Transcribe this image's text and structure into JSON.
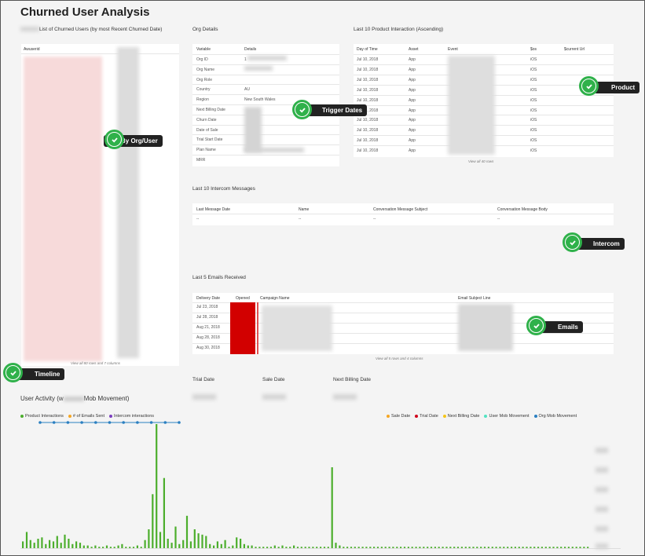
{
  "page": {
    "title": "Churned User Analysis"
  },
  "churned": {
    "title": "List of Churned Users (by most Recent Churned Date)",
    "column": "Awuserid",
    "footer": "View all 80 rows and 7 columns"
  },
  "org": {
    "title": "Org Details",
    "headers": [
      "Variable",
      "Details"
    ],
    "rows": [
      {
        "variable": "Org ID",
        "details": "1"
      },
      {
        "variable": "Org Name",
        "details": ""
      },
      {
        "variable": "Org Role",
        "details": ""
      },
      {
        "variable": "Country",
        "details": "AU"
      },
      {
        "variable": "Region",
        "details": "New South Wales"
      },
      {
        "variable": "Next Billing Date",
        "details": ""
      },
      {
        "variable": "Churn Date",
        "details": ""
      },
      {
        "variable": "Date of Sale",
        "details": ""
      },
      {
        "variable": "Trial Start Date",
        "details": ""
      },
      {
        "variable": "Plan Name",
        "details": ""
      },
      {
        "variable": "MRR",
        "details": ""
      }
    ]
  },
  "product": {
    "title": "Last 10 Product Interaction (Ascending)",
    "headers": [
      "Day of Time",
      "Asset",
      "Event",
      "$os",
      "$current Url"
    ],
    "rows": [
      {
        "date": "Jul 10, 2018",
        "asset": "App",
        "os": "iOS"
      },
      {
        "date": "Jul 10, 2018",
        "asset": "App",
        "os": "iOS"
      },
      {
        "date": "Jul 10, 2018",
        "asset": "App",
        "os": "iOS"
      },
      {
        "date": "Jul 10, 2018",
        "asset": "App",
        "os": "iOS"
      },
      {
        "date": "Jul 10, 2018",
        "asset": "App",
        "os": "iOS"
      },
      {
        "date": "Jul 10, 2018",
        "asset": "App",
        "os": "iOS"
      },
      {
        "date": "Jul 10, 2018",
        "asset": "App",
        "os": "iOS"
      },
      {
        "date": "Jul 10, 2018",
        "asset": "App",
        "os": "iOS"
      },
      {
        "date": "Jul 10, 2018",
        "asset": "App",
        "os": "iOS"
      },
      {
        "date": "Jul 10, 2018",
        "asset": "App",
        "os": "iOS"
      }
    ],
    "footer": "View all 40 rows"
  },
  "intercom": {
    "title": "Last 10 Intercom Messages",
    "headers": [
      "Last Message Date",
      "Name",
      "Conversation Message Subject",
      "Conversation Message Body"
    ],
    "row": [
      "--",
      "--",
      "--",
      "--"
    ]
  },
  "emails": {
    "title": "Last 5 Emails Received",
    "headers": [
      "Delivery Date",
      "Opened",
      "Campaign Name",
      "Email Subject Line"
    ],
    "dates": [
      "Jul 23, 2018",
      "Jul 28, 2018",
      "Aug 21, 2018",
      "Aug 28, 2018",
      "Aug 30, 2018"
    ],
    "footer": "View all 5 rows and 4 columns"
  },
  "dates": {
    "trial": "Trial Date",
    "sale": "Sale Date",
    "next_billing": "Next Billing Date"
  },
  "activity": {
    "title_prefix": "User Activity (w",
    "title_suffix": "Mob Movement)",
    "legend_left": [
      {
        "label": "Product Interactions",
        "color": "#4cae2c"
      },
      {
        "label": "# of Emails Sent",
        "color": "#f5a623"
      },
      {
        "label": "Intercom interactions",
        "color": "#7b3fbf"
      }
    ],
    "legend_right": [
      {
        "label": "Sale Date",
        "color": "#f5a623"
      },
      {
        "label": "Trial Date",
        "color": "#d0021b"
      },
      {
        "label": "Next Billing Date",
        "color": "#f5c518"
      },
      {
        "label": "User Mob Movement",
        "color": "#50e3c2"
      },
      {
        "label": "Org Mob Movement",
        "color": "#2a7fc1"
      }
    ]
  },
  "callouts": {
    "org_user": "By Org/User",
    "trigger": "Trigger Dates",
    "product": "Product",
    "intercom": "Intercom",
    "emails": "Emails",
    "timeline": "Timeline"
  },
  "chart_data": {
    "type": "bar",
    "series": [
      {
        "name": "Product Interactions",
        "values": [
          5,
          12,
          6,
          4,
          7,
          8,
          3,
          6,
          5,
          9,
          4,
          10,
          7,
          3,
          5,
          4,
          2,
          2,
          1,
          2,
          1,
          1,
          2,
          1,
          1,
          2,
          3,
          1,
          1,
          1,
          2,
          1,
          6,
          14,
          40,
          92,
          12,
          52,
          7,
          4,
          16,
          3,
          6,
          24,
          5,
          14,
          11,
          10,
          9,
          3,
          2,
          5,
          3,
          6,
          1,
          2,
          8,
          7,
          3,
          2,
          2,
          1,
          1,
          1,
          1,
          1,
          2,
          1,
          2,
          1,
          1,
          2,
          1,
          1,
          1,
          1,
          1,
          1,
          1,
          1,
          1,
          60,
          4,
          2,
          1,
          1,
          1,
          1,
          1,
          1,
          1,
          1,
          1,
          1,
          1,
          1,
          1,
          1,
          1,
          1,
          1,
          1,
          1,
          1,
          1,
          1,
          1,
          1,
          1,
          1,
          1,
          1,
          1,
          1,
          1,
          1,
          1,
          1,
          1,
          1,
          1,
          1,
          1,
          1,
          1,
          1,
          1,
          1,
          1,
          1,
          1,
          1,
          1,
          1,
          1,
          1,
          1,
          1,
          1,
          1,
          1,
          1,
          1,
          1,
          1,
          1,
          1,
          1,
          1
        ]
      }
    ],
    "timeline_points": 11
  }
}
